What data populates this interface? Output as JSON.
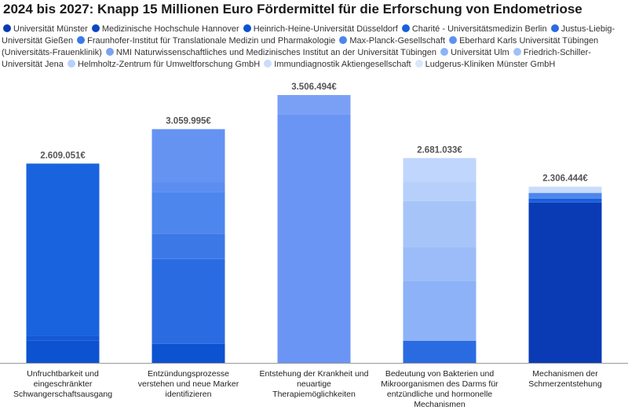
{
  "chart_data": {
    "type": "bar",
    "stacked": true,
    "title": "2024 bis 2027: Knapp 15 Millionen Euro Fördermittel für die Erforschung von Endometriose",
    "legend_position": "top",
    "legend": [
      {
        "name": "Universität Münster",
        "color": "#0a3bb5"
      },
      {
        "name": "Medizinische Hochschule Hannover",
        "color": "#0c46c4"
      },
      {
        "name": "Heinrich-Heine-Universität Düsseldorf",
        "color": "#0d52d1"
      },
      {
        "name": "Charité - Universitätsmedizin Berlin",
        "color": "#1a5fdb"
      },
      {
        "name": "Justus-Liebig-Universität Gießen",
        "color": "#2b6be2"
      },
      {
        "name": "Fraunhofer-Institut für Translationale Medizin und Pharmakologie",
        "color": "#3c79e7"
      },
      {
        "name": "Max-Planck-Gesellschaft",
        "color": "#4d86ec"
      },
      {
        "name": "Eberhard Karls Universität Tübingen (Universitäts-Frauenklinik)",
        "color": "#6190f2"
      },
      {
        "name": "NMI Naturwissenschaftliches und Medizinisches Institut an der Universität Tübingen",
        "color": "#7aa3f5"
      },
      {
        "name": "Universität Ulm",
        "color": "#8db2f7"
      },
      {
        "name": "Friedrich-Schiller-Universität Jena",
        "color": "#a0c0f9"
      },
      {
        "name": "Helmholtz-Zentrum für Umweltforschung GmbH",
        "color": "#b6d0fb"
      },
      {
        "name": "Immundiagnostik Aktiengesellschaft",
        "color": "#c8dcfc"
      },
      {
        "name": "Ludgerus-Kliniken Münster GmbH",
        "color": "#d9e7fd"
      }
    ],
    "bars": [
      {
        "label": "Unfruchtbarkeit und eingeschränkter Schwangerschaftsausgang",
        "total": 2609051,
        "total_label": "2.609.051€",
        "segments": [
          {
            "value": 290000,
            "color": "#0d52d1"
          },
          {
            "value": 60000,
            "color": "#1657d4"
          },
          {
            "value": 2259051,
            "color": "#1a63de"
          }
        ]
      },
      {
        "label": "Entzündungsprozesse verstehen und neue Marker identifizieren",
        "total": 3059995,
        "total_label": "3.059.995€",
        "segments": [
          {
            "value": 250000,
            "color": "#0d52d1"
          },
          {
            "value": 1110000,
            "color": "#2b6be2"
          },
          {
            "value": 330000,
            "color": "#3c79e7"
          },
          {
            "value": 550000,
            "color": "#4d86ec"
          },
          {
            "value": 120000,
            "color": "#5b8ef0"
          },
          {
            "value": 699995,
            "color": "#6593f2"
          }
        ]
      },
      {
        "label": "Entstehung der Krankheit und neuartige Therapiemöglichkeiten",
        "total": 3506494,
        "total_label": "3.506.494€",
        "segments": [
          {
            "value": 3256494,
            "color": "#6b95f4"
          },
          {
            "value": 250000,
            "color": "#7aa0f6"
          }
        ]
      },
      {
        "label": "Bedeutung von Bakterien und Mikroorganismen des Darms für entzündliche und hormonelle Mechanismen",
        "total": 2681033,
        "total_label": "2.681.033€",
        "segments": [
          {
            "value": 290000,
            "color": "#2b6be2"
          },
          {
            "value": 780000,
            "color": "#8db2f7"
          },
          {
            "value": 450000,
            "color": "#9bbcf8"
          },
          {
            "value": 600000,
            "color": "#a7c4f9"
          },
          {
            "value": 250000,
            "color": "#b6d0fb"
          },
          {
            "value": 311033,
            "color": "#c0d6fc"
          }
        ]
      },
      {
        "label": "Mechanismen der Schmerzentstehung",
        "total": 2306444,
        "total_label": "2.306.444€",
        "segments": [
          {
            "value": 2100000,
            "color": "#0a3bb5"
          },
          {
            "value": 50000,
            "color": "#1a5fdb"
          },
          {
            "value": 75000,
            "color": "#4d86ec"
          },
          {
            "value": 81444,
            "color": "#c8dcfc"
          }
        ]
      }
    ],
    "ylim": [
      0,
      3506494
    ]
  }
}
